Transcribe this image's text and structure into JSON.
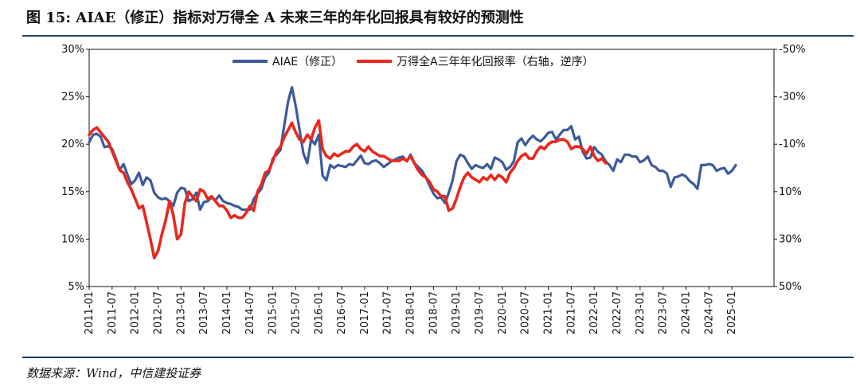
{
  "title": "图 15: AIAE（修正）指标对万得全 A 未来三年的年化回报具有较好的预测性",
  "source": "数据来源：Wind，中信建投证券",
  "colors": {
    "aiae": "#3b5b9a",
    "returns": "#e8281e",
    "rule": "#1f3d6b",
    "axis": "#111111"
  },
  "chart_data": {
    "type": "line",
    "title": "图 15: AIAE（修正）指标对万得全 A 未来三年的年化回报具有较好的预测性",
    "xlabel": "",
    "ylabel": "",
    "x_tick_labels": [
      "2011-01",
      "2011-07",
      "2012-01",
      "2012-07",
      "2013-01",
      "2013-07",
      "2014-01",
      "2014-07",
      "2015-01",
      "2015-07",
      "2016-01",
      "2016-07",
      "2017-01",
      "2017-07",
      "2018-01",
      "2018-07",
      "2019-01",
      "2019-07",
      "2020-01",
      "2020-07",
      "2021-01",
      "2021-07",
      "2022-01",
      "2022-07",
      "2023-01",
      "2023-07",
      "2024-01",
      "2024-07",
      "2025-01"
    ],
    "y_left": {
      "ylim": [
        5,
        30
      ],
      "ticks": [
        "5%",
        "10%",
        "15%",
        "20%",
        "25%",
        "30%"
      ],
      "tick_values": [
        5,
        10,
        15,
        20,
        25,
        30
      ]
    },
    "y_right": {
      "ylim": [
        -50,
        50
      ],
      "inverted": true,
      "ticks": [
        "-50%",
        "-30%",
        "-10%",
        "10%",
        "30%",
        "50%"
      ],
      "tick_values": [
        -50,
        -30,
        -10,
        10,
        30,
        50
      ]
    },
    "legend_position": "top-center",
    "series": [
      {
        "name": "AIAE（修正）",
        "axis": "left",
        "color": "#3b5b9a",
        "start": "2011-01",
        "values": [
          20.2,
          21.0,
          21.1,
          20.8,
          19.7,
          19.8,
          19.5,
          18.5,
          17.3,
          17.9,
          16.8,
          15.8,
          16.2,
          17.0,
          15.7,
          16.5,
          16.2,
          14.9,
          14.4,
          14.2,
          14.3,
          14.0,
          13.5,
          14.9,
          15.4,
          15.3,
          14.0,
          14.2,
          14.9,
          13.1,
          13.9,
          14.0,
          14.4,
          14.1,
          14.6,
          14.0,
          13.8,
          13.7,
          13.5,
          13.4,
          13.1,
          13.1,
          13.1,
          14.2,
          14.8,
          15.3,
          16.5,
          17.0,
          18.5,
          18.9,
          19.4,
          22.0,
          24.5,
          26.0,
          24.0,
          21.5,
          19.0,
          18.0,
          20.5,
          20.0,
          21.0,
          16.7,
          16.2,
          17.8,
          17.5,
          17.8,
          17.7,
          17.6,
          17.9,
          17.8,
          18.3,
          18.8,
          18.0,
          17.9,
          18.2,
          18.3,
          18.0,
          17.6,
          17.9,
          18.2,
          18.4,
          18.6,
          18.7,
          18.2,
          18.9,
          18.0,
          17.6,
          17.2,
          16.5,
          15.6,
          14.8,
          14.3,
          14.4,
          13.8,
          14.9,
          16.2,
          18.2,
          18.9,
          18.7,
          18.0,
          17.4,
          17.8,
          17.6,
          17.5,
          17.9,
          17.4,
          18.6,
          18.4,
          18.1,
          17.3,
          17.6,
          18.2,
          20.2,
          20.6,
          19.9,
          20.5,
          20.9,
          20.5,
          20.3,
          20.7,
          21.2,
          21.3,
          20.5,
          21.0,
          21.5,
          21.5,
          21.9,
          20.5,
          20.8,
          19.2,
          18.5,
          18.6,
          19.7,
          19.2,
          18.9,
          18.2,
          17.8,
          17.2,
          18.4,
          18.1,
          18.9,
          18.9,
          18.7,
          18.7,
          18.1,
          18.3,
          18.7,
          17.8,
          17.6,
          17.2,
          17.2,
          16.9,
          15.5,
          16.5,
          16.6,
          16.8,
          16.6,
          16.1,
          15.8,
          15.3,
          17.8,
          17.8,
          17.9,
          17.8,
          17.2,
          17.4,
          17.5,
          16.9,
          17.2,
          17.8
        ]
      },
      {
        "name": "万得全A三年年化回报率（右轴，逆序）",
        "axis": "right",
        "color": "#e8281e",
        "start": "2011-01",
        "values": [
          -14,
          -16,
          -17,
          -15,
          -13,
          -11,
          -7,
          -3,
          1,
          2,
          6,
          9,
          13,
          17,
          16,
          23,
          30,
          38,
          35,
          28,
          22,
          14,
          20,
          30,
          28,
          15,
          10,
          12,
          14,
          9,
          10,
          13,
          12,
          14,
          16,
          16,
          18,
          21,
          20,
          21,
          21,
          19,
          16,
          18,
          10,
          7,
          2,
          1,
          -3,
          -7,
          -9,
          -13,
          -16,
          -19,
          -15,
          -12,
          -11,
          -14,
          -12,
          -17,
          -20,
          -8,
          -5,
          -4,
          -6,
          -5,
          -6,
          -7,
          -7,
          -9,
          -10,
          -8,
          -7,
          -9,
          -7,
          -6,
          -5,
          -5,
          -4,
          -3,
          -3,
          -3,
          -4,
          -3,
          -5,
          -2,
          1,
          3,
          4,
          6,
          9,
          10,
          12,
          12,
          18,
          17,
          13,
          8,
          4,
          2,
          4,
          5,
          6,
          4,
          5,
          3,
          5,
          3,
          4,
          6,
          2,
          0,
          -3,
          -5,
          -6,
          -4,
          -4,
          -7,
          -9,
          -8,
          -10,
          -11,
          -11,
          -12,
          -12,
          -11,
          -8,
          -9,
          -9,
          -8,
          -6,
          -9,
          -5,
          -3,
          -4,
          -2
        ]
      }
    ]
  },
  "labels": {
    "left_ticks": [
      "5%",
      "10%",
      "15%",
      "20%",
      "25%",
      "30%"
    ],
    "right_ticks": [
      "-50%",
      "-30%",
      "-10%",
      "10%",
      "30%",
      "50%"
    ]
  }
}
